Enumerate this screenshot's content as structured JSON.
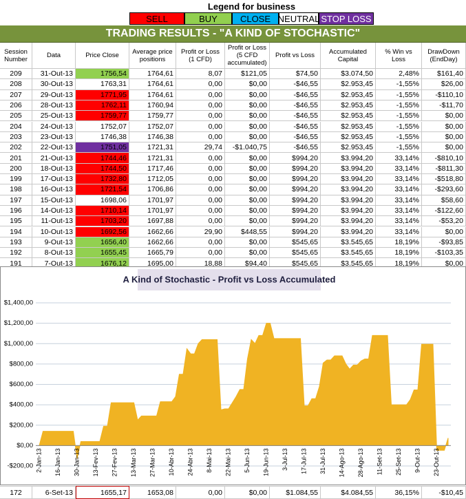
{
  "legend": {
    "title": "Legend for business",
    "items": [
      {
        "label": "SELL",
        "color": "#ff0000"
      },
      {
        "label": "BUY",
        "color": "#92d050"
      },
      {
        "label": "CLOSE",
        "color": "#00b0f0"
      },
      {
        "label": "NEUTRAL",
        "color": "#ffffff"
      },
      {
        "label": "STOP LOSS",
        "color": "#7030a0"
      }
    ]
  },
  "table": {
    "title": "TRADING RESULTS - \"A KIND OF STOCHASTIC\"",
    "columns": [
      "Session Number",
      "Data",
      "Price Close",
      "Average price positions",
      "Profit or Loss (1 CFD)",
      "Profit or Loss (5 CFD accumulated)",
      "Profit vs Loss",
      "Accumulated Capital",
      "% Win vs Loss",
      "DrawDown (EndDay)"
    ],
    "rows": [
      [
        "209",
        "31-Out-13",
        "1756,54",
        "1764,61",
        "8,07",
        "$121,05",
        "$74,50",
        "$3.074,50",
        "2,48%",
        "$161,40"
      ],
      [
        "208",
        "30-Out-13",
        "1763,31",
        "1764,61",
        "0,00",
        "$0,00",
        "-$46,55",
        "$2.953,45",
        "-1,55%",
        "$26,00"
      ],
      [
        "207",
        "29-Out-13",
        "1771,95",
        "1764,61",
        "0,00",
        "$0,00",
        "-$46,55",
        "$2.953,45",
        "-1,55%",
        "-$110,10"
      ],
      [
        "206",
        "28-Out-13",
        "1762,11",
        "1760,94",
        "0,00",
        "$0,00",
        "-$46,55",
        "$2.953,45",
        "-1,55%",
        "-$11,70"
      ],
      [
        "205",
        "25-Out-13",
        "1759,77",
        "1759,77",
        "0,00",
        "$0,00",
        "-$46,55",
        "$2.953,45",
        "-1,55%",
        "$0,00"
      ],
      [
        "204",
        "24-Out-13",
        "1752,07",
        "1752,07",
        "0,00",
        "$0,00",
        "-$46,55",
        "$2.953,45",
        "-1,55%",
        "$0,00"
      ],
      [
        "203",
        "23-Out-13",
        "1746,38",
        "1746,38",
        "0,00",
        "$0,00",
        "-$46,55",
        "$2.953,45",
        "-1,55%",
        "$0,00"
      ],
      [
        "202",
        "22-Out-13",
        "1751,05",
        "1721,31",
        "29,74",
        "-$1.040,75",
        "-$46,55",
        "$2.953,45",
        "-1,55%",
        "$0,00"
      ],
      [
        "201",
        "21-Out-13",
        "1744,46",
        "1721,31",
        "0,00",
        "$0,00",
        "$994,20",
        "$3.994,20",
        "33,14%",
        "-$810,10"
      ],
      [
        "200",
        "18-Out-13",
        "1744,50",
        "1717,46",
        "0,00",
        "$0,00",
        "$994,20",
        "$3.994,20",
        "33,14%",
        "-$811,30"
      ],
      [
        "199",
        "17-Out-13",
        "1732,80",
        "1712,05",
        "0,00",
        "$0,00",
        "$994,20",
        "$3.994,20",
        "33,14%",
        "-$518,80"
      ],
      [
        "198",
        "16-Out-13",
        "1721,54",
        "1706,86",
        "0,00",
        "$0,00",
        "$994,20",
        "$3.994,20",
        "33,14%",
        "-$293,60"
      ],
      [
        "197",
        "15-Out-13",
        "1698,06",
        "1701,97",
        "0,00",
        "$0,00",
        "$994,20",
        "$3.994,20",
        "33,14%",
        "$58,60"
      ],
      [
        "196",
        "14-Out-13",
        "1710,14",
        "1701,97",
        "0,00",
        "$0,00",
        "$994,20",
        "$3.994,20",
        "33,14%",
        "-$122,60"
      ],
      [
        "195",
        "11-Out-13",
        "1703,20",
        "1697,88",
        "0,00",
        "$0,00",
        "$994,20",
        "$3.994,20",
        "33,14%",
        "-$53,20"
      ],
      [
        "194",
        "10-Out-13",
        "1692,56",
        "1662,66",
        "29,90",
        "$448,55",
        "$994,20",
        "$3.994,20",
        "33,14%",
        "$0,00"
      ],
      [
        "193",
        "9-Out-13",
        "1656,40",
        "1662,66",
        "0,00",
        "$0,00",
        "$545,65",
        "$3.545,65",
        "18,19%",
        "-$93,85"
      ],
      [
        "192",
        "8-Out-13",
        "1655,45",
        "1665,79",
        "0,00",
        "$0,00",
        "$545,65",
        "$3.545,65",
        "18,19%",
        "-$103,35"
      ],
      [
        "191",
        "7-Out-13",
        "1676,12",
        "1695,00",
        "18,88",
        "$94,40",
        "$545,65",
        "$3.545,65",
        "18,19%",
        "$0,00"
      ]
    ],
    "price_colors": [
      "#92d050",
      null,
      "#ff0000",
      "#ff0000",
      "#ff0000",
      null,
      null,
      "#7030a0",
      "#ff0000",
      "#ff0000",
      "#ff0000",
      "#ff0000",
      null,
      "#ff0000",
      "#ff0000",
      "#ff0000",
      "#92d050",
      "#92d050",
      "#92d050"
    ],
    "footer_row": [
      "172",
      "6-Set-13",
      "1655,17",
      "1653,08",
      "0,00",
      "$0,00",
      "$1.084,55",
      "$4.084,55",
      "36,15%",
      "-$10,45"
    ]
  },
  "chart_data": {
    "type": "area",
    "title": "A Kind of Stochastic - Profit vs Loss Accumulated",
    "color": "#f0b323",
    "grid": true,
    "categories": [
      "2-Jan-13",
      null,
      null,
      null,
      null,
      "16-Jan-13",
      null,
      null,
      null,
      null,
      "30-Jan-13",
      null,
      null,
      null,
      null,
      "13-Fev-13",
      null,
      null,
      null,
      null,
      "27-Fev-13",
      null,
      null,
      null,
      null,
      "13-Mar-13",
      null,
      null,
      null,
      null,
      "27-Mar-13",
      null,
      null,
      null,
      null,
      "10-Abr-13",
      null,
      null,
      null,
      null,
      "24-Abr-13",
      null,
      null,
      null,
      null,
      "8-Mai-13",
      null,
      null,
      null,
      null,
      "22-Mai-13",
      null,
      null,
      null,
      null,
      "5-Jun-13",
      null,
      null,
      null,
      null,
      "19-Jun-13",
      null,
      null,
      null,
      null,
      "3-Jul-13",
      null,
      null,
      null,
      null,
      "17-Jul-13",
      null,
      null,
      null,
      null,
      "31-Jul-13",
      null,
      null,
      null,
      null,
      "14-Ago-13",
      null,
      null,
      null,
      null,
      "28-Ago-13",
      null,
      null,
      null,
      null,
      "11-Set-13",
      null,
      null,
      null,
      null,
      "25-Set-13",
      null,
      null,
      null,
      null,
      "9-Out-13",
      null,
      null,
      null,
      null,
      "23-Out-13",
      null,
      null,
      null
    ],
    "values": [
      0,
      140,
      140,
      140,
      140,
      140,
      140,
      140,
      140,
      140,
      -130,
      40,
      40,
      40,
      40,
      40,
      40,
      190,
      190,
      420,
      420,
      420,
      420,
      420,
      420,
      420,
      250,
      290,
      290,
      290,
      290,
      290,
      430,
      430,
      430,
      430,
      480,
      700,
      700,
      950,
      900,
      900,
      1000,
      1040,
      1040,
      1040,
      1040,
      1040,
      350,
      360,
      360,
      420,
      480,
      550,
      550,
      850,
      1040,
      1000,
      1080,
      1080,
      1200,
      1200,
      1050,
      1050,
      1050,
      1050,
      1050,
      1050,
      1050,
      1050,
      390,
      390,
      460,
      460,
      580,
      810,
      840,
      840,
      880,
      880,
      880,
      800,
      750,
      790,
      790,
      830,
      850,
      850,
      1080,
      1080,
      1080,
      1080,
      1080,
      400,
      400,
      400,
      400,
      400,
      450,
      545.65,
      545.65,
      994.2,
      994.2,
      994.2,
      994.2,
      -46.55,
      -46.55,
      -46.55,
      74.5
    ],
    "ylim": [
      -200,
      1400
    ],
    "yticks": [
      {
        "value": -200,
        "label": "-$200,00"
      },
      {
        "value": 0,
        "label": "$0,00"
      },
      {
        "value": 200,
        "label": "$200,00"
      },
      {
        "value": 400,
        "label": "$400,00"
      },
      {
        "value": 600,
        "label": "$600,00"
      },
      {
        "value": 800,
        "label": "$800,00"
      },
      {
        "value": 1000,
        "label": "$1,000,00"
      },
      {
        "value": 1200,
        "label": "$1,200,00"
      },
      {
        "value": 1400,
        "label": "$1,400,00"
      }
    ]
  }
}
